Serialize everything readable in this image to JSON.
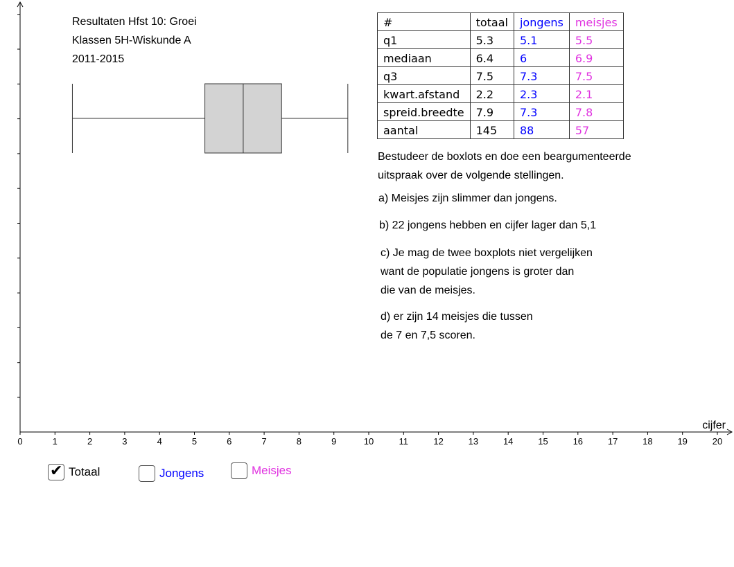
{
  "title": {
    "lines": [
      "Resultaten Hfst 10: Groei",
      "Klassen 5H-Wiskunde A",
      "2011-2015"
    ]
  },
  "colors": {
    "totaal": "#000000",
    "jongens": "#0000ff",
    "meisjes": "#e034e0",
    "box_fill": "#d3d3d3",
    "axis": "#000000"
  },
  "table": {
    "header": [
      "#",
      "totaal",
      "jongens",
      "meisjes"
    ],
    "rows": [
      [
        "q1",
        "5.3",
        "5.1",
        "5.5"
      ],
      [
        "mediaan",
        "6.4",
        "6",
        "6.9"
      ],
      [
        "q3",
        "7.5",
        "7.3",
        "7.5"
      ],
      [
        "kwart.afstand",
        "2.2",
        "2.3",
        "2.1"
      ],
      [
        "spreid.breedte",
        "7.9",
        "7.3",
        "7.8"
      ],
      [
        "aantal",
        "145",
        "88",
        "57"
      ]
    ]
  },
  "questions": {
    "intro": [
      "Bestudeer de boxlots en doe een beargumenteerde",
      "uitspraak over de volgende stellingen."
    ],
    "a": [
      "a) Meisjes zijn slimmer dan jongens."
    ],
    "b": [
      "b) 22 jongens hebben en cijfer lager dan 5,1"
    ],
    "c": [
      "c) Je mag de twee boxplots niet vergelijken",
      "want de populatie jongens is groter dan",
      "die van de meisjes."
    ],
    "d": [
      "d) er zijn 14 meisjes die tussen",
      "de 7 en 7,5 scoren."
    ]
  },
  "checkboxes": [
    {
      "label": "Totaal",
      "checked": true,
      "color": "#000000"
    },
    {
      "label": "Jongens",
      "checked": false,
      "color": "#0000ff"
    },
    {
      "label": "Meisjes",
      "checked": false,
      "color": "#e034e0"
    }
  ],
  "chart_data": {
    "type": "boxplot",
    "xlabel": "cijfer",
    "xlim": [
      0,
      20
    ],
    "xticks": [
      "0",
      "1",
      "2",
      "3",
      "4",
      "5",
      "6",
      "7",
      "8",
      "9",
      "10",
      "11",
      "12",
      "13",
      "14",
      "15",
      "16",
      "17",
      "18",
      "19",
      "20"
    ],
    "series": [
      {
        "name": "Totaal",
        "min": 1.5,
        "q1": 5.3,
        "median": 6.4,
        "q3": 7.5,
        "max": 9.4
      }
    ]
  }
}
